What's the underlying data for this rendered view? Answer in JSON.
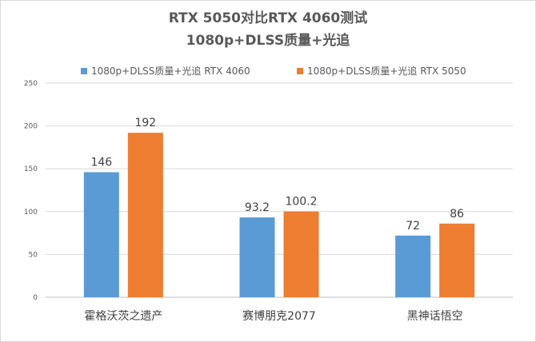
{
  "chart_data": {
    "type": "bar",
    "title": "RTX 5050对比RTX 4060测试",
    "subtitle": "1080p+DLSS质量+光追",
    "categories": [
      "霍格沃茨之遗产",
      "赛博朋克2077",
      "黑神话悟空"
    ],
    "series": [
      {
        "name": "1080p+DLSS质量+光追 RTX 4060",
        "values": [
          146,
          93.2,
          72
        ],
        "labels": [
          "146",
          "93.2",
          "72"
        ],
        "color": "#5b9bd5"
      },
      {
        "name": "1080p+DLSS质量+光追 RTX 5050",
        "values": [
          192,
          100.2,
          86
        ],
        "labels": [
          "192",
          "100.2",
          "86"
        ],
        "color": "#ed7d31"
      }
    ],
    "ylim": [
      0,
      250
    ],
    "yticks": [
      0,
      50,
      100,
      150,
      200,
      250
    ],
    "grid": true,
    "legend_position": "top",
    "xlabel": "",
    "ylabel": ""
  }
}
